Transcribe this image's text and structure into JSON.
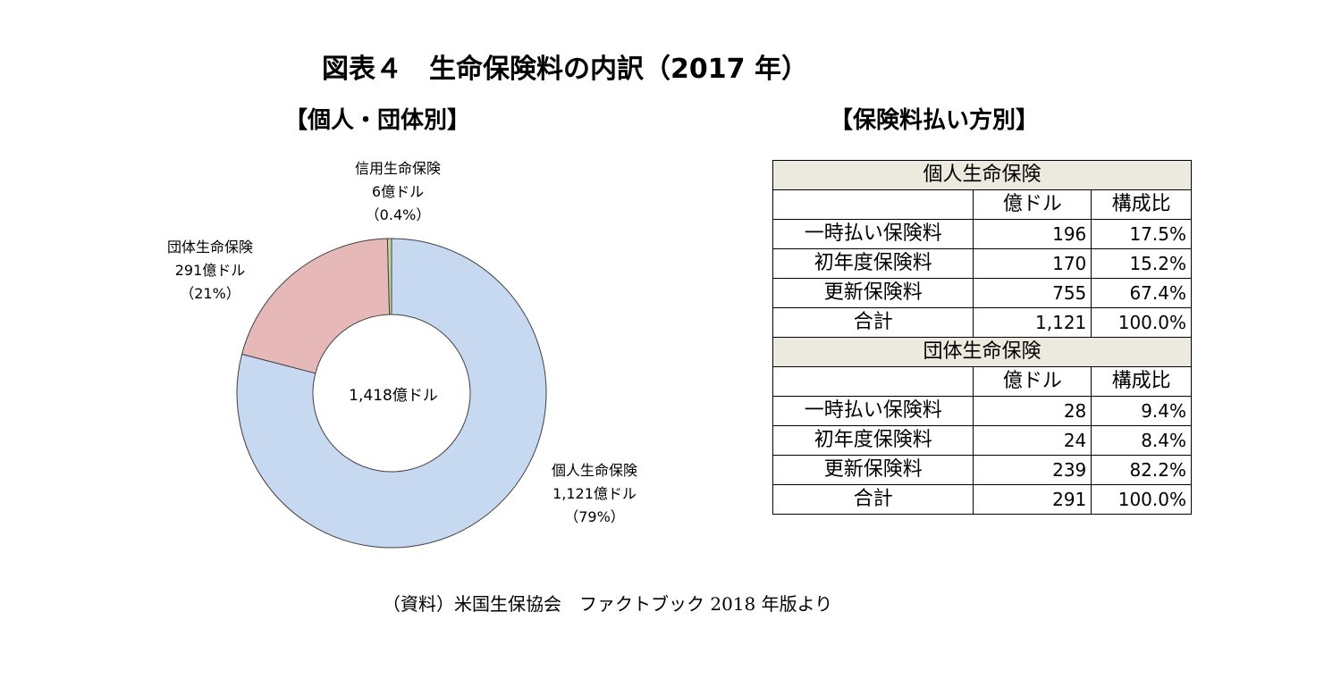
{
  "title": "図表４　生命保険料の内訳（2017 年）",
  "chart_data": [
    {
      "type": "pie",
      "title": "【個人・団体別】",
      "center_label": "1,418億ドル",
      "categories": [
        "個人生命保険",
        "団体生命保険",
        "信用生命保険"
      ],
      "values": [
        1121,
        291,
        6
      ],
      "value_labels": [
        "1,121億ドル",
        "291億ドル",
        "6億ドル"
      ],
      "percent_labels": [
        "（79%）",
        "（21%）",
        "（0.4%）"
      ],
      "colors": [
        "#c6d9f1",
        "#e6b9b8",
        "#c4d79b"
      ]
    },
    {
      "type": "table",
      "title": "【保険料払い方別】",
      "columns": [
        "",
        "億ドル",
        "構成比"
      ],
      "sections": [
        {
          "name": "個人生命保険",
          "rows": [
            [
              "一時払い保険料",
              "196",
              "17.5%"
            ],
            [
              "初年度保険料",
              "170",
              "15.2%"
            ],
            [
              "更新保険料",
              "755",
              "67.4%"
            ],
            [
              "合計",
              "1,121",
              "100.0%"
            ]
          ]
        },
        {
          "name": "団体生命保険",
          "rows": [
            [
              "一時払い保険料",
              "28",
              "9.4%"
            ],
            [
              "初年度保険料",
              "24",
              "8.4%"
            ],
            [
              "更新保険料",
              "239",
              "82.2%"
            ],
            [
              "合計",
              "291",
              "100.0%"
            ]
          ]
        }
      ]
    }
  ],
  "source": "（資料）米国生保協会　ファクトブック 2018 年版より"
}
